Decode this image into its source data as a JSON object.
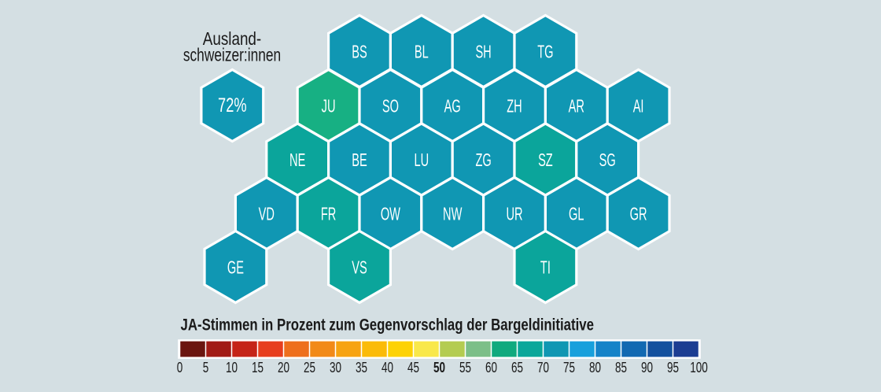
{
  "annotation": {
    "label_line1": "Ausland-",
    "label_line2": "schweizer:innen",
    "hex_value": "72%",
    "hex_color": "#1097b3"
  },
  "map": {
    "cantons": [
      {
        "code": "BS",
        "row": 0,
        "col": 0,
        "color": "#1097b3"
      },
      {
        "code": "BL",
        "row": 0,
        "col": 1,
        "color": "#1097b3"
      },
      {
        "code": "SH",
        "row": 0,
        "col": 2,
        "color": "#1097b3"
      },
      {
        "code": "TG",
        "row": 0,
        "col": 3,
        "color": "#1097b3"
      },
      {
        "code": "JU",
        "row": 1,
        "col": 0,
        "color": "#17b083"
      },
      {
        "code": "SO",
        "row": 1,
        "col": 1,
        "color": "#1097b3"
      },
      {
        "code": "AG",
        "row": 1,
        "col": 2,
        "color": "#1097b3"
      },
      {
        "code": "ZH",
        "row": 1,
        "col": 3,
        "color": "#1097b3"
      },
      {
        "code": "AR",
        "row": 1,
        "col": 4,
        "color": "#1097b3"
      },
      {
        "code": "AI",
        "row": 1,
        "col": 5,
        "color": "#1097b3"
      },
      {
        "code": "NE",
        "row": 2,
        "col": 0,
        "color": "#0ba59b"
      },
      {
        "code": "BE",
        "row": 2,
        "col": 1,
        "color": "#1097b3"
      },
      {
        "code": "LU",
        "row": 2,
        "col": 2,
        "color": "#1097b3"
      },
      {
        "code": "ZG",
        "row": 2,
        "col": 3,
        "color": "#1097b3"
      },
      {
        "code": "SZ",
        "row": 2,
        "col": 4,
        "color": "#0ba59b"
      },
      {
        "code": "SG",
        "row": 2,
        "col": 5,
        "color": "#1097b3"
      },
      {
        "code": "VD",
        "row": 3,
        "col": 0,
        "color": "#1097b3"
      },
      {
        "code": "FR",
        "row": 3,
        "col": 1,
        "color": "#0ba59b"
      },
      {
        "code": "OW",
        "row": 3,
        "col": 2,
        "color": "#1097b3"
      },
      {
        "code": "NW",
        "row": 3,
        "col": 3,
        "color": "#1097b3"
      },
      {
        "code": "UR",
        "row": 3,
        "col": 4,
        "color": "#1097b3"
      },
      {
        "code": "GL",
        "row": 3,
        "col": 5,
        "color": "#1097b3"
      },
      {
        "code": "GR",
        "row": 3,
        "col": 6,
        "color": "#1097b3"
      },
      {
        "code": "GE",
        "row": 4,
        "col": 0,
        "color": "#1097b3"
      },
      {
        "code": "VS",
        "row": 4,
        "col": 2,
        "color": "#0ba59b"
      },
      {
        "code": "TI",
        "row": 4,
        "col": 5,
        "color": "#0ba59b"
      }
    ]
  },
  "legend": {
    "title": "JA-Stimmen in Prozent zum Gegenvorschlag der Bargeldinitiative",
    "ticks": [
      "0",
      "5",
      "10",
      "15",
      "20",
      "25",
      "30",
      "35",
      "40",
      "45",
      "50",
      "55",
      "60",
      "65",
      "70",
      "75",
      "80",
      "85",
      "90",
      "95",
      "100"
    ],
    "bold_tick": "50",
    "segment_colors": [
      "#6b150f",
      "#a11b15",
      "#c52418",
      "#e73e1e",
      "#ee6f1d",
      "#f28a18",
      "#f7a311",
      "#fbbb09",
      "#fdd205",
      "#f9e84a",
      "#b4cc51",
      "#7cbf88",
      "#10aa7e",
      "#0ba79a",
      "#1097b3",
      "#18a0dc",
      "#1583c8",
      "#1269b2",
      "#14519e",
      "#1c3d92"
    ]
  },
  "colors": {
    "background": "#d4dfe3",
    "hex_border": "#ffffff",
    "hex_label": "#ffffff",
    "text_dark": "#1a1a1a"
  },
  "chart_data": {
    "type": "hexbin-cartogram",
    "title": "JA-Stimmen in Prozent zum Gegenvorschlag der Bargeldinitiative",
    "legend_scale": {
      "min": 0,
      "max": 100,
      "step": 5,
      "bold_label": 50
    },
    "annotation": {
      "label": "Ausland- schweizer:innen",
      "value": "72%"
    },
    "cantons": [
      "BS",
      "BL",
      "SH",
      "TG",
      "JU",
      "SO",
      "AG",
      "ZH",
      "AR",
      "AI",
      "NE",
      "BE",
      "LU",
      "ZG",
      "SZ",
      "SG",
      "VD",
      "FR",
      "OW",
      "NW",
      "UR",
      "GL",
      "GR",
      "GE",
      "VS",
      "TI"
    ]
  }
}
